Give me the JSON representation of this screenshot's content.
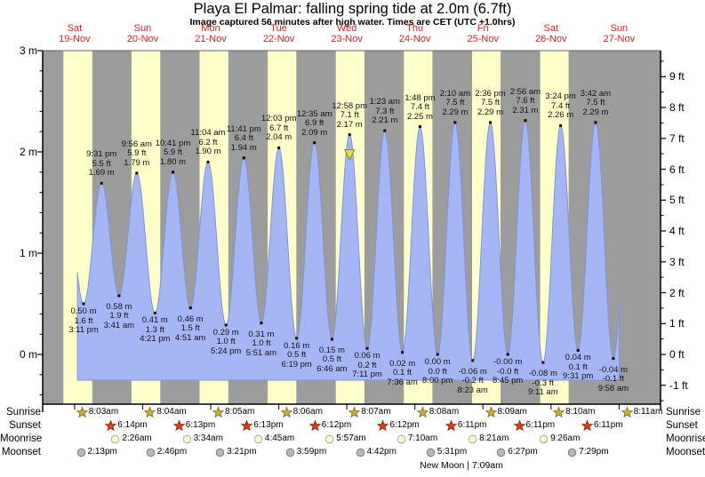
{
  "title": "Playa El Palmar: falling  spring tide at 2.0m (6.7ft)",
  "subtitle": "Image captured 56 minutes after high water. Times are CET (UTC +1.0hrs)",
  "new_moon": "New Moon | 7:09am",
  "sun_moon_labels": {
    "sunrise": "Sunrise",
    "sunset": "Sunset",
    "moonrise": "Moonrise",
    "moonset": "Moonset"
  },
  "colors": {
    "night_band": "#9c9c9c",
    "daylight_band": "#ffffc9",
    "tide_fill": "#a5b6f4",
    "tide_edge": "#7f93e0",
    "day_label": "#d42222",
    "axis": "#000000",
    "sunrise_star": "#c9b43b",
    "sunset_star": "#e23b17",
    "moonrise_circle": "#ffffd6",
    "moonset_circle": "#b8b8b8",
    "marker_fill": "#e6e23c"
  },
  "days": [
    {
      "name": "Sat",
      "date": "19-Nov",
      "sunrise": "8:03am",
      "sunset": "6:14pm",
      "moonrise": null,
      "moonset": "2:13pm"
    },
    {
      "name": "Sun",
      "date": "20-Nov",
      "sunrise": "8:04am",
      "sunset": "6:13pm",
      "moonrise": "2:26am",
      "moonset": "2:46pm"
    },
    {
      "name": "Mon",
      "date": "21-Nov",
      "sunrise": "8:05am",
      "sunset": "6:13pm",
      "moonrise": "3:34am",
      "moonset": "3:21pm"
    },
    {
      "name": "Tue",
      "date": "22-Nov",
      "sunrise": "8:06am",
      "sunset": "6:12pm",
      "moonrise": "4:45am",
      "moonset": "3:59pm"
    },
    {
      "name": "Wed",
      "date": "23-Nov",
      "sunrise": "8:07am",
      "sunset": "6:12pm",
      "moonrise": "5:57am",
      "moonset": "4:42pm"
    },
    {
      "name": "Thu",
      "date": "24-Nov",
      "sunrise": "8:08am",
      "sunset": "6:11pm",
      "moonrise": "7:10am",
      "moonset": "5:31pm"
    },
    {
      "name": "Fri",
      "date": "25-Nov",
      "sunrise": "8:09am",
      "sunset": "6:11pm",
      "moonrise": "8:21am",
      "moonset": "6:27pm"
    },
    {
      "name": "Sat",
      "date": "26-Nov",
      "sunrise": "8:10am",
      "sunset": "6:11pm",
      "moonrise": "9:26am",
      "moonset": "7:29pm"
    },
    {
      "name": "Sun",
      "date": "27-Nov",
      "sunrise": "8:11am",
      "sunset": null,
      "moonrise": null,
      "moonset": null
    }
  ],
  "chart_data": {
    "type": "area",
    "series_name": "Tide height",
    "x_axis": "Time, Sat 19-Nov to Sun 27-Nov",
    "ylabel_left": "metres",
    "ylabel_right": "feet",
    "ylim_m": [
      -0.49,
      3.0
    ],
    "left_axis_ticks": [
      "3 m",
      "2 m",
      "1 m",
      "0 m"
    ],
    "right_axis_ticks": [
      "9 ft",
      "8 ft",
      "7 ft",
      "6 ft",
      "5 ft",
      "4 ft",
      "3 ft",
      "2 ft",
      "1 ft",
      "0 ft",
      "-1 ft"
    ],
    "tides": [
      {
        "day": 0,
        "type": "low",
        "time": "3:11 pm",
        "ft": "1.6 ft",
        "m": "0.50 m"
      },
      {
        "day": 0,
        "type": "high",
        "time": "9:31 pm",
        "ft": "5.5 ft",
        "m": "1.69 m"
      },
      {
        "day": 1,
        "type": "low",
        "time": "3:41 am",
        "ft": "1.9 ft",
        "m": "0.58 m"
      },
      {
        "day": 1,
        "type": "high",
        "time": "9:56 am",
        "ft": "5.9 ft",
        "m": "1.79 m"
      },
      {
        "day": 1,
        "type": "low",
        "time": "4:21 pm",
        "ft": "1.3 ft",
        "m": "0.41 m"
      },
      {
        "day": 1,
        "type": "high",
        "time": "10:41 pm",
        "ft": "5.9 ft",
        "m": "1.80 m"
      },
      {
        "day": 2,
        "type": "low",
        "time": "4:51 am",
        "ft": "1.5 ft",
        "m": "0.46 m"
      },
      {
        "day": 2,
        "type": "high",
        "time": "11:04 am",
        "ft": "6.2 ft",
        "m": "1.90 m"
      },
      {
        "day": 2,
        "type": "low",
        "time": "5:24 pm",
        "ft": "1.0 ft",
        "m": "0.29 m"
      },
      {
        "day": 2,
        "type": "high",
        "time": "11:41 pm",
        "ft": "6.4 ft",
        "m": "1.94 m"
      },
      {
        "day": 3,
        "type": "low",
        "time": "5:51 am",
        "ft": "1.0 ft",
        "m": "0.31 m"
      },
      {
        "day": 3,
        "type": "high",
        "time": "12:03 pm",
        "ft": "6.7 ft",
        "m": "2.04 m"
      },
      {
        "day": 3,
        "type": "low",
        "time": "6:19 pm",
        "ft": "0.5 ft",
        "m": "0.16 m"
      },
      {
        "day": 4,
        "type": "high",
        "time": "12:35 am",
        "ft": "6.9 ft",
        "m": "2.09 m"
      },
      {
        "day": 4,
        "type": "low",
        "time": "6:46 am",
        "ft": "0.5 ft",
        "m": "0.15 m"
      },
      {
        "day": 4,
        "type": "high",
        "time": "12:58 pm",
        "ft": "7.1 ft",
        "m": "2.17 m",
        "marker": true
      },
      {
        "day": 4,
        "type": "low",
        "time": "7:11 pm",
        "ft": "0.2 ft",
        "m": "0.06 m"
      },
      {
        "day": 5,
        "type": "high",
        "time": "1:23 am",
        "ft": "7.3 ft",
        "m": "2.21 m"
      },
      {
        "day": 5,
        "type": "low",
        "time": "7:36 am",
        "ft": "0.1 ft",
        "m": "0.02 m"
      },
      {
        "day": 5,
        "type": "high",
        "time": "1:48 pm",
        "ft": "7.4 ft",
        "m": "2.25 m"
      },
      {
        "day": 5,
        "type": "low",
        "time": "8:00 pm",
        "ft": "0.0 ft",
        "m": "0.00 m"
      },
      {
        "day": 6,
        "type": "high",
        "time": "2:10 am",
        "ft": "7.5 ft",
        "m": "2.29 m"
      },
      {
        "day": 6,
        "type": "low",
        "time": "8:23 am",
        "ft": "-0.2 ft",
        "m": "-0.06 m"
      },
      {
        "day": 6,
        "type": "high",
        "time": "2:36 pm",
        "ft": "7.5 ft",
        "m": "2.29 m"
      },
      {
        "day": 6,
        "type": "low",
        "time": "8:45 pm",
        "ft": "-0.0 ft",
        "m": "-0.00 m"
      },
      {
        "day": 7,
        "type": "high",
        "time": "2:56 am",
        "ft": "7.6 ft",
        "m": "2.31 m"
      },
      {
        "day": 7,
        "type": "low",
        "time": "9:11 am",
        "ft": "-0.3 ft",
        "m": "-0.08 m"
      },
      {
        "day": 7,
        "type": "high",
        "time": "3:24 pm",
        "ft": "7.4 ft",
        "m": "2.26 m"
      },
      {
        "day": 7,
        "type": "low",
        "time": "9:31 pm",
        "ft": "0.1 ft",
        "m": "0.04 m"
      },
      {
        "day": 8,
        "type": "high",
        "time": "3:42 am",
        "ft": "7.5 ft",
        "m": "2.29 m"
      },
      {
        "day": 8,
        "type": "low",
        "time": "9:58 am",
        "ft": "-0.1 ft",
        "m": "-0.04 m"
      }
    ]
  }
}
